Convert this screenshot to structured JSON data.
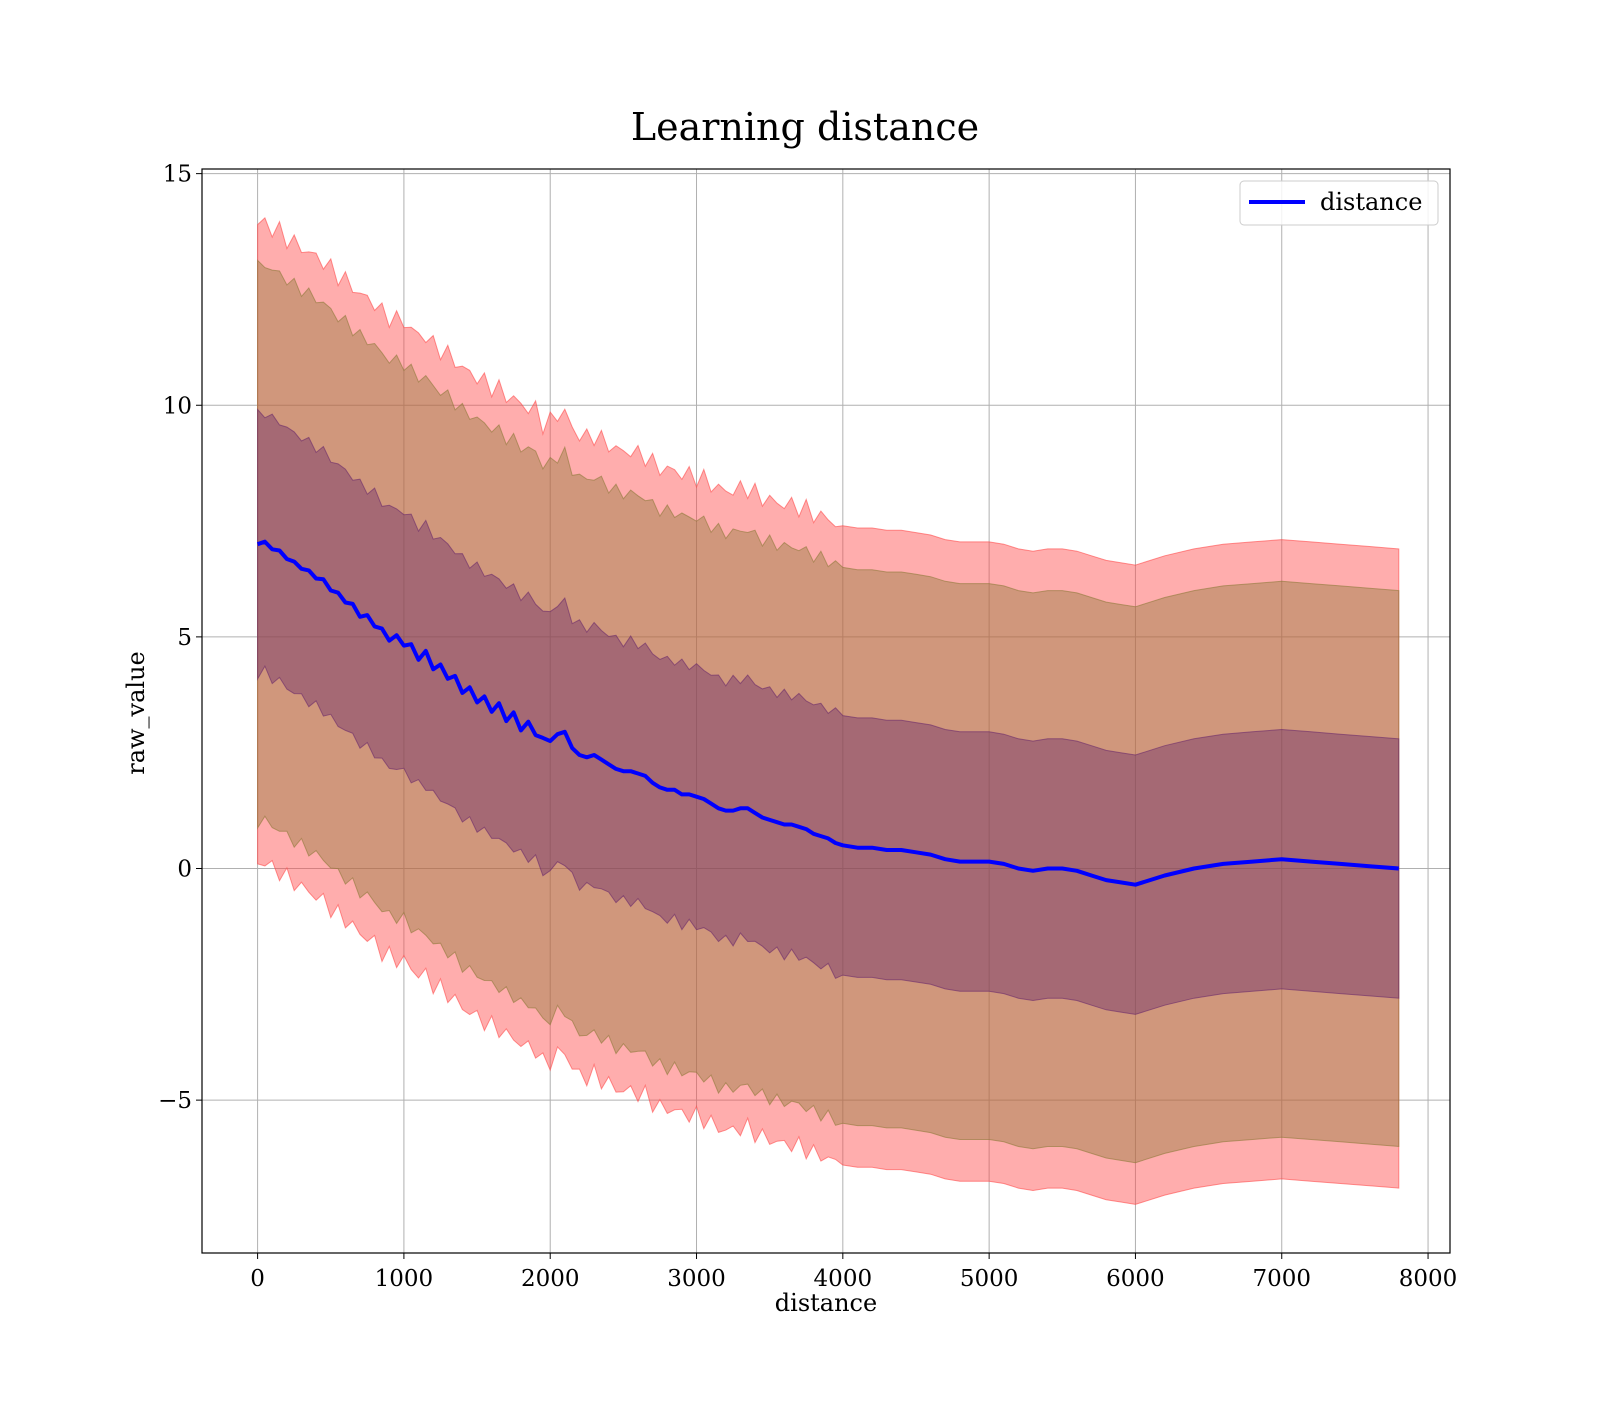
{
  "chart_data": {
    "type": "line",
    "title": "Learning distance",
    "xlabel": "distance",
    "ylabel": "raw_value",
    "xlim": [
      -380,
      8150
    ],
    "ylim": [
      -8.3,
      15.1
    ],
    "x_ticks": [
      0,
      1000,
      2000,
      3000,
      4000,
      5000,
      6000,
      7000,
      8000
    ],
    "x_tick_labels": [
      "0",
      "1000",
      "2000",
      "3000",
      "4000",
      "5000",
      "6000",
      "7000",
      "8000"
    ],
    "y_ticks": [
      15,
      10,
      5,
      0,
      -5
    ],
    "y_tick_labels": [
      "15",
      "10",
      "5",
      "0",
      "−5"
    ],
    "grid": true,
    "legend": {
      "position": "top-right",
      "entries": [
        "distance"
      ]
    },
    "x": [
      0,
      50,
      100,
      150,
      200,
      250,
      300,
      350,
      400,
      450,
      500,
      550,
      600,
      650,
      700,
      750,
      800,
      850,
      900,
      950,
      1000,
      1050,
      1100,
      1150,
      1200,
      1250,
      1300,
      1350,
      1400,
      1450,
      1500,
      1550,
      1600,
      1650,
      1700,
      1750,
      1800,
      1850,
      1900,
      1950,
      2000,
      2050,
      2100,
      2150,
      2200,
      2250,
      2300,
      2350,
      2400,
      2450,
      2500,
      2550,
      2600,
      2650,
      2700,
      2750,
      2800,
      2850,
      2900,
      2950,
      3000,
      3050,
      3100,
      3150,
      3200,
      3250,
      3300,
      3350,
      3400,
      3450,
      3500,
      3550,
      3600,
      3650,
      3700,
      3750,
      3800,
      3850,
      3900,
      3950,
      4000,
      4100,
      4200,
      4300,
      4400,
      4500,
      4600,
      4700,
      4800,
      4900,
      5000,
      5100,
      5200,
      5300,
      5400,
      5500,
      5600,
      5700,
      5800,
      5900,
      6000,
      6200,
      6400,
      6600,
      6800,
      7000,
      7200,
      7400,
      7600,
      7800
    ],
    "series": [
      {
        "name": "distance",
        "color": "#0000ff",
        "values": [
          7.0,
          7.05,
          6.9,
          6.85,
          6.7,
          6.6,
          6.5,
          6.4,
          6.3,
          6.2,
          6.05,
          5.9,
          5.8,
          5.65,
          5.5,
          5.4,
          5.3,
          5.1,
          5.0,
          4.95,
          4.9,
          4.75,
          4.6,
          4.6,
          4.4,
          4.3,
          4.2,
          4.05,
          3.9,
          3.8,
          3.7,
          3.6,
          3.5,
          3.45,
          3.3,
          3.25,
          3.1,
          3.05,
          3.0,
          2.7,
          2.75,
          2.9,
          2.95,
          2.6,
          2.45,
          2.4,
          2.45,
          2.35,
          2.25,
          2.15,
          2.1,
          2.1,
          2.05,
          2.0,
          1.85,
          1.75,
          1.7,
          1.7,
          1.6,
          1.6,
          1.55,
          1.5,
          1.4,
          1.3,
          1.25,
          1.25,
          1.3,
          1.3,
          1.2,
          1.1,
          1.05,
          1.0,
          0.95,
          0.95,
          0.9,
          0.85,
          0.75,
          0.7,
          0.65,
          0.55,
          0.5,
          0.45,
          0.45,
          0.4,
          0.4,
          0.35,
          0.3,
          0.2,
          0.15,
          0.15,
          0.15,
          0.1,
          0.0,
          -0.05,
          0.0,
          0.0,
          -0.05,
          -0.15,
          -0.25,
          -0.3,
          -0.35,
          -0.15,
          0.0,
          0.1,
          0.15,
          0.2,
          0.15,
          0.1,
          0.05,
          0.0
        ]
      }
    ],
    "bands": [
      {
        "color": "#ff4a4a",
        "opacity": 0.45,
        "upper_offset": 6.9,
        "lower_offset": -6.9,
        "jitter": 0.22
      },
      {
        "color": "#8f7a3a",
        "opacity": 0.42,
        "upper_offset": 6.0,
        "lower_offset": -6.0,
        "jitter": 0.15
      },
      {
        "color": "#6a2a6a",
        "opacity": 0.42,
        "upper_offset": 2.8,
        "lower_offset": -2.8,
        "jitter": 0.12
      }
    ]
  }
}
